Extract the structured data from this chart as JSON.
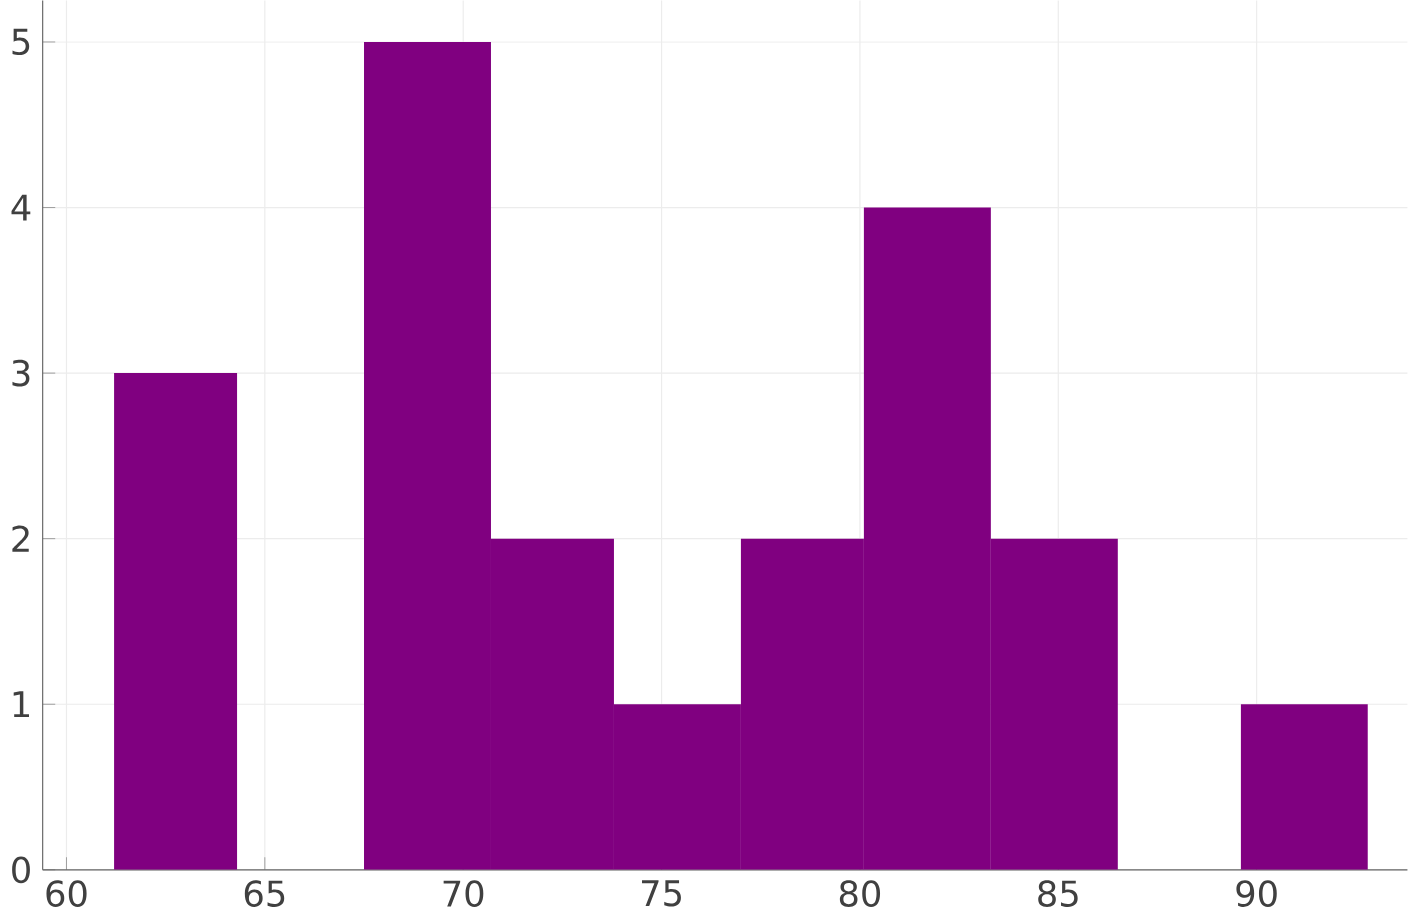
{
  "chart_data": {
    "type": "histogram",
    "bins": [
      61.2,
      64.3,
      67.5,
      70.7,
      73.8,
      77.0,
      80.1,
      83.3,
      86.5,
      89.6,
      92.8
    ],
    "values": [
      3,
      0,
      5,
      2,
      1,
      2,
      4,
      2,
      0,
      1
    ],
    "color": "#800080",
    "xlim": [
      59.4,
      93.8
    ],
    "ylim": [
      0,
      5.25
    ],
    "xticks": [
      60,
      65,
      70,
      75,
      80,
      85,
      90
    ],
    "yticks": [
      0,
      1,
      2,
      3,
      4,
      5
    ],
    "grid": true
  }
}
